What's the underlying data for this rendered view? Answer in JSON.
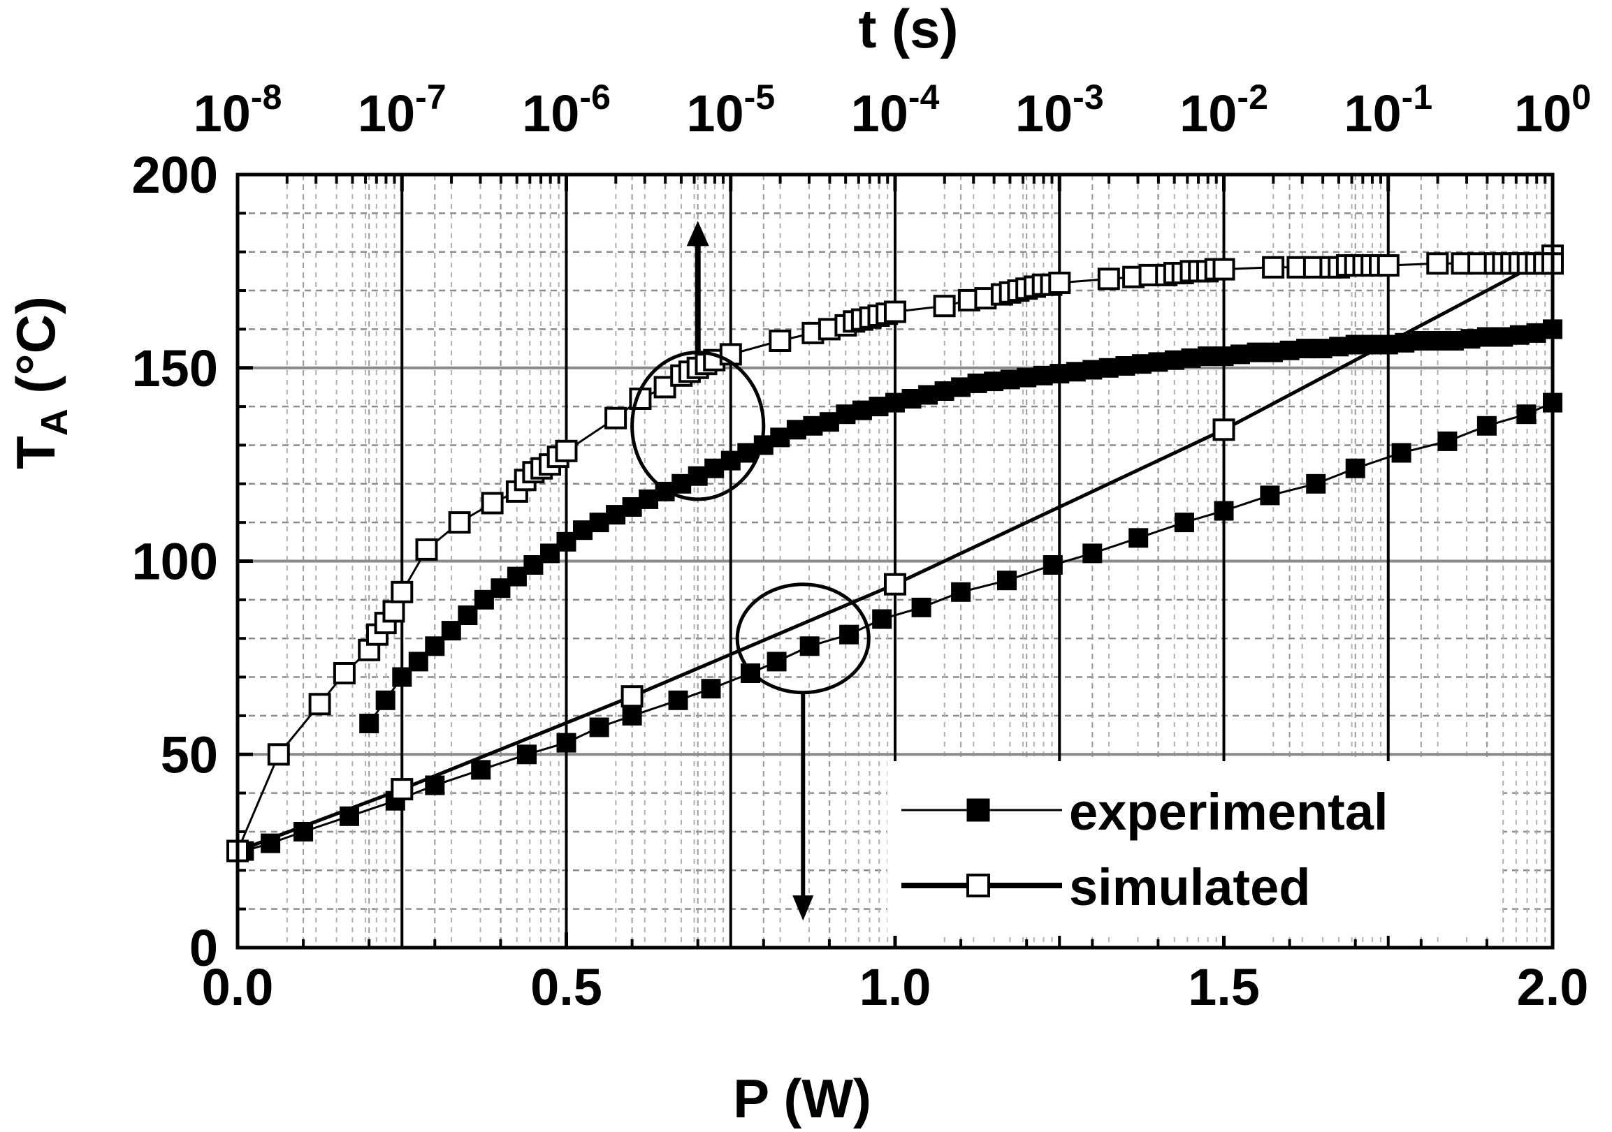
{
  "chart_data": {
    "type": "line",
    "title": "",
    "xlabel": "P (W)",
    "x2label": "t (s)",
    "ylabel_main": "T",
    "ylabel_sub": "A",
    "ylabel_unit": " (°C)",
    "xlim": [
      0.0,
      2.0
    ],
    "ylim": [
      0,
      200
    ],
    "x2lim_log10": [
      -8,
      0
    ],
    "x_ticks": [
      {
        "value": 0.0,
        "label": "0.0"
      },
      {
        "value": 0.5,
        "label": "0.5"
      },
      {
        "value": 1.0,
        "label": "1.0"
      },
      {
        "value": 1.5,
        "label": "1.5"
      },
      {
        "value": 2.0,
        "label": "2.0"
      }
    ],
    "y_ticks": [
      {
        "value": 0,
        "label": "0"
      },
      {
        "value": 50,
        "label": "50"
      },
      {
        "value": 100,
        "label": "100"
      },
      {
        "value": 150,
        "label": "150"
      },
      {
        "value": 200,
        "label": "200"
      }
    ],
    "x2_ticks": [
      {
        "exp": -8,
        "base": "10",
        "sup": "-8"
      },
      {
        "exp": -7,
        "base": "10",
        "sup": "-7"
      },
      {
        "exp": -6,
        "base": "10",
        "sup": "-6"
      },
      {
        "exp": -5,
        "base": "10",
        "sup": "-5"
      },
      {
        "exp": -4,
        "base": "10",
        "sup": "-4"
      },
      {
        "exp": -3,
        "base": "10",
        "sup": "-3"
      },
      {
        "exp": -2,
        "base": "10",
        "sup": "-2"
      },
      {
        "exp": -1,
        "base": "10",
        "sup": "-1"
      },
      {
        "exp": 0,
        "base": "10",
        "sup": "0"
      }
    ],
    "grid": true,
    "legend": {
      "position": "bottom-right",
      "entries": [
        {
          "label": "experimental",
          "marker": "filled-square"
        },
        {
          "label": "simulated",
          "marker": "open-square"
        }
      ]
    },
    "series": [
      {
        "name": "experimental",
        "axis": "P",
        "marker": "filled-square",
        "line": "thin",
        "x": [
          0.01,
          0.05,
          0.1,
          0.17,
          0.24,
          0.3,
          0.37,
          0.44,
          0.5,
          0.55,
          0.6,
          0.67,
          0.72,
          0.78,
          0.82,
          0.87,
          0.93,
          0.98,
          1.04,
          1.1,
          1.17,
          1.24,
          1.3,
          1.37,
          1.44,
          1.5,
          1.57,
          1.64,
          1.7,
          1.77,
          1.84,
          1.9,
          1.96,
          2.0
        ],
        "y": [
          25,
          27,
          30,
          34,
          38,
          42,
          46,
          50,
          53,
          57,
          60,
          64,
          67,
          71,
          74,
          78,
          81,
          85,
          88,
          92,
          95,
          99,
          102,
          106,
          110,
          113,
          117,
          120,
          124,
          128,
          131,
          135,
          138,
          141
        ]
      },
      {
        "name": "simulated",
        "axis": "P",
        "marker": "open-square",
        "line": "thick",
        "x": [
          0.0,
          0.25,
          0.6,
          1.0,
          1.5,
          2.0
        ],
        "y": [
          25,
          41,
          65,
          94,
          134,
          179
        ]
      },
      {
        "name": "experimental",
        "axis": "t",
        "marker": "filled-square",
        "line": "thin",
        "log10_t": [
          -7.2,
          -7.1,
          -7.0,
          -6.9,
          -6.8,
          -6.7,
          -6.6,
          -6.5,
          -6.4,
          -6.3,
          -6.2,
          -6.1,
          -6.0,
          -5.9,
          -5.8,
          -5.7,
          -5.6,
          -5.5,
          -5.4,
          -5.3,
          -5.2,
          -5.1,
          -5.0,
          -4.9,
          -4.8,
          -4.7,
          -4.6,
          -4.5,
          -4.4,
          -4.3,
          -4.2,
          -4.1,
          -4.0,
          -3.9,
          -3.8,
          -3.7,
          -3.6,
          -3.5,
          -3.4,
          -3.3,
          -3.2,
          -3.1,
          -3.0,
          -2.9,
          -2.8,
          -2.7,
          -2.6,
          -2.5,
          -2.4,
          -2.3,
          -2.2,
          -2.1,
          -2.0,
          -1.9,
          -1.8,
          -1.7,
          -1.6,
          -1.5,
          -1.4,
          -1.3,
          -1.2,
          -1.1,
          -1.0,
          -0.9,
          -0.8,
          -0.7,
          -0.6,
          -0.5,
          -0.4,
          -0.3,
          -0.2,
          -0.1,
          0.0
        ],
        "y": [
          58,
          64,
          70,
          74,
          78,
          82,
          86,
          90,
          93,
          96,
          99,
          102,
          105,
          108,
          110,
          112,
          114,
          116,
          118,
          120,
          122,
          124,
          126,
          128,
          130,
          132,
          134,
          135,
          136,
          138,
          139,
          140,
          141,
          142,
          143,
          144,
          145,
          146,
          146.5,
          147,
          147.5,
          148,
          148.5,
          149,
          149.5,
          150,
          150.5,
          151,
          151.5,
          152,
          152.5,
          153,
          153,
          153.5,
          154,
          154,
          154.5,
          155,
          155,
          155.5,
          156,
          156,
          156,
          156.5,
          157,
          157,
          157,
          157.5,
          158,
          158,
          158.5,
          159,
          160
        ]
      },
      {
        "name": "simulated",
        "axis": "t",
        "marker": "open-square",
        "line": "thin",
        "log10_t": [
          -8.0,
          -7.75,
          -7.5,
          -7.35,
          -7.2,
          -7.15,
          -7.1,
          -7.05,
          -7.0,
          -6.85,
          -6.65,
          -6.45,
          -6.3,
          -6.25,
          -6.2,
          -6.15,
          -6.1,
          -6.05,
          -6.0,
          -5.7,
          -5.55,
          -5.4,
          -5.3,
          -5.25,
          -5.2,
          -5.15,
          -5.1,
          -5.0,
          -4.7,
          -4.5,
          -4.4,
          -4.3,
          -4.25,
          -4.2,
          -4.15,
          -4.1,
          -4.05,
          -4.0,
          -3.7,
          -3.55,
          -3.45,
          -3.35,
          -3.3,
          -3.25,
          -3.2,
          -3.15,
          -3.1,
          -3.05,
          -3.0,
          -2.7,
          -2.55,
          -2.45,
          -2.35,
          -2.3,
          -2.25,
          -2.2,
          -2.15,
          -2.1,
          -2.05,
          -2.0,
          -1.7,
          -1.55,
          -1.45,
          -1.35,
          -1.3,
          -1.25,
          -1.2,
          -1.15,
          -1.1,
          -1.05,
          -1.0,
          -0.7,
          -0.55,
          -0.45,
          -0.35,
          -0.3,
          -0.25,
          -0.2,
          -0.15,
          -0.1,
          -0.05,
          0.0
        ],
        "y": [
          25,
          50,
          63,
          71,
          77,
          81,
          84,
          87,
          92,
          103,
          110,
          115,
          118,
          121,
          123,
          124,
          125,
          127,
          128.5,
          137,
          142,
          145,
          148,
          149,
          150,
          151,
          152,
          153.5,
          157,
          159,
          160,
          161,
          162,
          162.5,
          163,
          163.5,
          164,
          164.5,
          166,
          167.5,
          168,
          169,
          169.5,
          170,
          170.5,
          171,
          171.5,
          171.5,
          172,
          173,
          173.5,
          174,
          174,
          174.5,
          174.5,
          175,
          175,
          175,
          175.5,
          175.5,
          176,
          176,
          176,
          176,
          176,
          176.5,
          176.5,
          176.5,
          176.5,
          176.5,
          176.5,
          177,
          177,
          177,
          177,
          177,
          177,
          177,
          177,
          177,
          177,
          177
        ]
      }
    ],
    "annotations": [
      {
        "type": "ellipse",
        "cx_log10_t": -5.2,
        "cy": 135,
        "rx_dec": 0.4,
        "ry": 19,
        "arrow": "up",
        "refers_to": "t axis"
      },
      {
        "type": "ellipse",
        "cx_P": 0.86,
        "cy": 80,
        "rx_P": 0.1,
        "ry": 14,
        "arrow": "down",
        "refers_to": "P axis"
      }
    ]
  }
}
